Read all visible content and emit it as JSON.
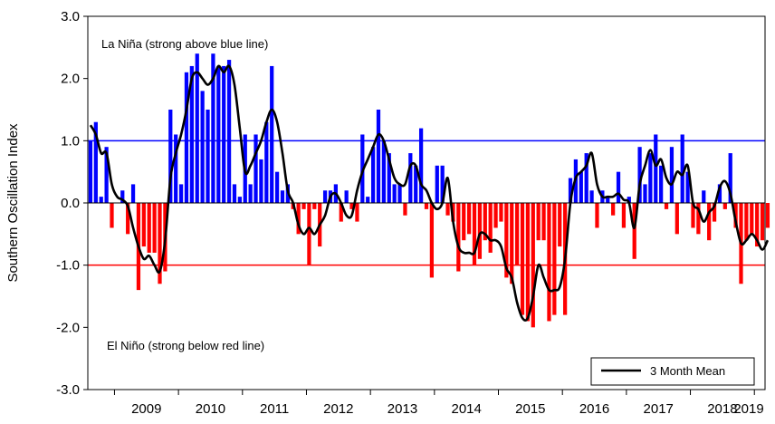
{
  "chart_data": {
    "type": "bar",
    "ylabel": "Southern Oscillation Index",
    "ylim": [
      -3.0,
      3.0
    ],
    "yticks": [
      "3.0",
      "2.0",
      "1.0",
      "0.0",
      "-1.0",
      "-2.0",
      "-3.0"
    ],
    "xticks": [
      "2009",
      "2010",
      "2011",
      "2012",
      "2013",
      "2014",
      "2015",
      "2016",
      "2017",
      "2018",
      "2019"
    ],
    "x_start": "2008-08",
    "x_end": "2019-03",
    "thresholds": {
      "la_nina": 1.0,
      "el_nino": -1.0
    },
    "annotations": {
      "la_nina": "La Niña (strong above blue line)",
      "el_nino": "El Niño (strong below red line)"
    },
    "legend": {
      "label": "3 Month Mean",
      "position": "bottom-right"
    },
    "colors": {
      "positive": "#0000ff",
      "negative": "#ff0000",
      "mean": "#000000",
      "la_nina_line": "#0000ff",
      "el_nino_line": "#ff0000"
    },
    "months": [
      "2008-08",
      "2008-09",
      "2008-10",
      "2008-11",
      "2008-12",
      "2009-01",
      "2009-02",
      "2009-03",
      "2009-04",
      "2009-05",
      "2009-06",
      "2009-07",
      "2009-08",
      "2009-09",
      "2009-10",
      "2009-11",
      "2009-12",
      "2010-01",
      "2010-02",
      "2010-03",
      "2010-04",
      "2010-05",
      "2010-06",
      "2010-07",
      "2010-08",
      "2010-09",
      "2010-10",
      "2010-11",
      "2010-12",
      "2011-01",
      "2011-02",
      "2011-03",
      "2011-04",
      "2011-05",
      "2011-06",
      "2011-07",
      "2011-08",
      "2011-09",
      "2011-10",
      "2011-11",
      "2011-12",
      "2012-01",
      "2012-02",
      "2012-03",
      "2012-04",
      "2012-05",
      "2012-06",
      "2012-07",
      "2012-08",
      "2012-09",
      "2012-10",
      "2012-11",
      "2012-12",
      "2013-01",
      "2013-02",
      "2013-03",
      "2013-04",
      "2013-05",
      "2013-06",
      "2013-07",
      "2013-08",
      "2013-09",
      "2013-10",
      "2013-11",
      "2013-12",
      "2014-01",
      "2014-02",
      "2014-03",
      "2014-04",
      "2014-05",
      "2014-06",
      "2014-07",
      "2014-08",
      "2014-09",
      "2014-10",
      "2014-11",
      "2014-12",
      "2015-01",
      "2015-02",
      "2015-03",
      "2015-04",
      "2015-05",
      "2015-06",
      "2015-07",
      "2015-08",
      "2015-09",
      "2015-10",
      "2015-11",
      "2015-12",
      "2016-01",
      "2016-02",
      "2016-03",
      "2016-04",
      "2016-05",
      "2016-06",
      "2016-07",
      "2016-08",
      "2016-09",
      "2016-10",
      "2016-11",
      "2016-12",
      "2017-01",
      "2017-02",
      "2017-03",
      "2017-04",
      "2017-05",
      "2017-06",
      "2017-07",
      "2017-08",
      "2017-09",
      "2017-10",
      "2017-11",
      "2017-12",
      "2018-01",
      "2018-02",
      "2018-03",
      "2018-04",
      "2018-05",
      "2018-06",
      "2018-07",
      "2018-08",
      "2018-09",
      "2018-10",
      "2018-11",
      "2018-12",
      "2019-01",
      "2019-02",
      "2019-03"
    ],
    "series": [
      {
        "name": "",
        "kind": "bar",
        "values": [
          1.0,
          1.3,
          0.1,
          0.9,
          -0.4,
          0.0,
          0.2,
          -0.5,
          0.3,
          -1.4,
          -0.7,
          -0.8,
          -0.8,
          -1.3,
          -1.1,
          1.5,
          1.1,
          0.3,
          2.1,
          2.2,
          2.4,
          1.8,
          1.5,
          2.4,
          2.2,
          2.2,
          2.3,
          0.3,
          0.1,
          1.1,
          0.3,
          1.1,
          0.7,
          1.3,
          2.2,
          0.5,
          0.2,
          0.3,
          -0.1,
          -0.5,
          -0.1,
          -1.0,
          -0.1,
          -0.7,
          0.2,
          0.2,
          0.3,
          -0.3,
          0.2,
          -0.1,
          -0.3,
          1.1,
          0.1,
          0.9,
          1.5,
          1.0,
          0.8,
          0.3,
          0.3,
          -0.2,
          0.8,
          0.6,
          1.2,
          -0.1,
          -1.2,
          0.6,
          0.6,
          -0.2,
          -0.3,
          -1.1,
          -0.6,
          -0.5,
          -1.0,
          -0.9,
          -0.6,
          -0.8,
          -0.4,
          -0.3,
          -1.2,
          -1.3,
          -1.0,
          -1.8,
          -1.9,
          -2.0,
          -0.6,
          -0.6,
          -1.9,
          -1.8,
          -0.7,
          -1.8,
          0.4,
          0.7,
          0.5,
          0.8,
          0.2,
          -0.4,
          0.2,
          0.1,
          -0.2,
          0.5,
          -0.4,
          0.1,
          -0.9,
          0.9,
          0.3,
          0.8,
          1.1,
          0.6,
          -0.1,
          0.9,
          -0.5,
          1.1,
          0.5,
          -0.4,
          -0.5,
          0.2,
          -0.6,
          -0.3,
          0.3,
          -0.1,
          0.8,
          -0.4,
          -1.3,
          -0.6,
          -0.5,
          -0.7,
          -0.6,
          -0.4
        ]
      },
      {
        "name": "3 Month Mean",
        "kind": "line",
        "values": [
          1.25,
          1.1,
          0.8,
          0.8,
          0.3,
          0.1,
          0.05,
          -0.05,
          -0.4,
          -0.7,
          -0.9,
          -0.85,
          -1.0,
          -1.1,
          -0.6,
          0.4,
          0.8,
          1.1,
          1.5,
          2.0,
          2.1,
          2.0,
          1.9,
          2.0,
          2.2,
          2.1,
          2.2,
          1.9,
          1.2,
          0.5,
          0.6,
          0.8,
          1.0,
          1.3,
          1.5,
          1.3,
          0.8,
          0.2,
          0.0,
          -0.35,
          -0.5,
          -0.4,
          -0.5,
          -0.35,
          -0.2,
          0.1,
          0.15,
          0.0,
          -0.2,
          -0.2,
          0.2,
          0.5,
          0.7,
          0.9,
          1.1,
          1.0,
          0.7,
          0.4,
          0.3,
          0.3,
          0.6,
          0.6,
          0.3,
          0.2,
          0.0,
          -0.1,
          0.0,
          0.4,
          -0.3,
          -0.7,
          -0.8,
          -0.8,
          -0.8,
          -0.5,
          -0.5,
          -0.6,
          -0.6,
          -0.7,
          -1.05,
          -1.2,
          -1.6,
          -1.85,
          -1.85,
          -1.5,
          -1.0,
          -1.2,
          -1.4,
          -1.4,
          -1.35,
          -0.9,
          0.0,
          0.4,
          0.5,
          0.6,
          0.8,
          0.3,
          0.1,
          0.1,
          0.1,
          0.15,
          0.05,
          0.0,
          -0.4,
          0.3,
          0.6,
          0.85,
          0.6,
          0.7,
          0.4,
          0.3,
          0.5,
          0.45,
          0.6,
          0.0,
          -0.1,
          -0.3,
          -0.15,
          -0.05,
          0.25,
          0.35,
          0.15,
          -0.3,
          -0.65,
          -0.6,
          -0.5,
          -0.6,
          -0.75,
          -0.6
        ]
      }
    ]
  }
}
